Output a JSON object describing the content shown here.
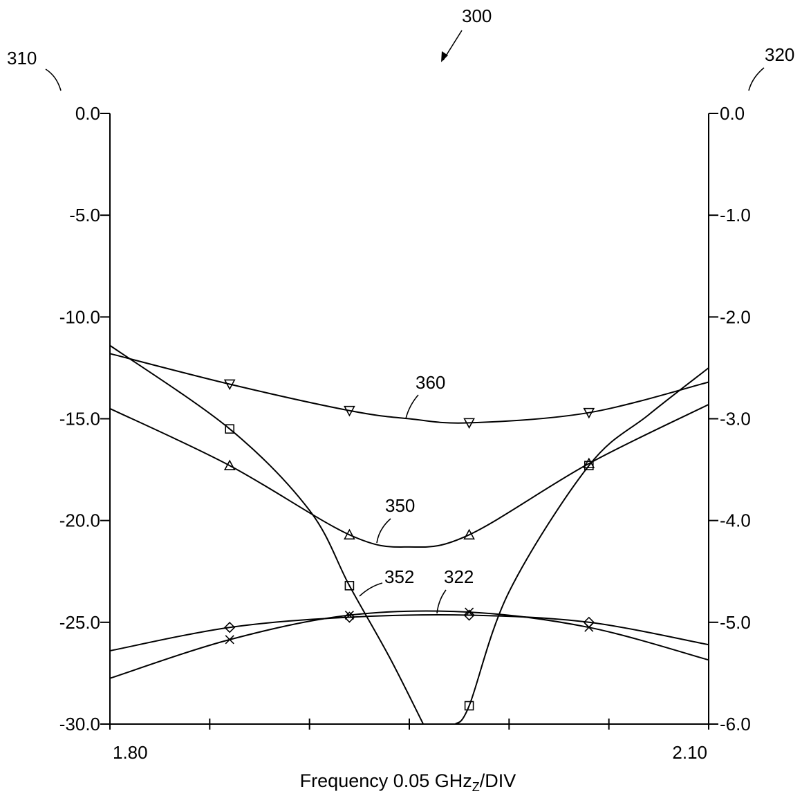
{
  "figure": {
    "ref_main": "300",
    "ref_left_axis": "310",
    "ref_right_axis": "320"
  },
  "chart_data": {
    "type": "line",
    "title": "",
    "xlabel": "Frequency 0.05 GHz",
    "xlabel_subscript": "Z",
    "xlabel_suffix": "/DIV",
    "xlim": [
      1.8,
      2.1
    ],
    "x_tick_labels": [
      {
        "value": 1.8,
        "label": "1.80"
      },
      {
        "value": 2.1,
        "label": "2.10"
      }
    ],
    "x_ticks": [
      1.8,
      1.85,
      1.9,
      1.95,
      2.0,
      2.05,
      2.1
    ],
    "ylim_left": [
      -30.0,
      0.0
    ],
    "y_ticks_left": [
      {
        "value": 0.0,
        "label": "0.0"
      },
      {
        "value": -5.0,
        "label": "-5.0"
      },
      {
        "value": -10.0,
        "label": "-10.0"
      },
      {
        "value": -15.0,
        "label": "-15.0"
      },
      {
        "value": -20.0,
        "label": "-20.0"
      },
      {
        "value": -25.0,
        "label": "-25.0"
      },
      {
        "value": -30.0,
        "label": "-30.0"
      }
    ],
    "ylim_right": [
      -6.0,
      0.0
    ],
    "y_ticks_right": [
      {
        "value": 0.0,
        "label": "0.0"
      },
      {
        "value": -1.0,
        "label": "-1.0"
      },
      {
        "value": -2.0,
        "label": "-2.0"
      },
      {
        "value": -3.0,
        "label": "-3.0"
      },
      {
        "value": -4.0,
        "label": "-4.0"
      },
      {
        "value": -5.0,
        "label": "-5.0"
      },
      {
        "value": -6.0,
        "label": "-6.0"
      }
    ],
    "grid": false,
    "series": [
      {
        "name": "360",
        "axis": "left",
        "marker": "triangle-down",
        "x": [
          1.8,
          1.86,
          1.92,
          1.95,
          1.98,
          2.04,
          2.1
        ],
        "y": [
          -11.8,
          -13.3,
          -14.6,
          -15.0,
          -15.2,
          -14.7,
          -13.2
        ],
        "marker_x": [
          1.86,
          1.92,
          1.98,
          2.04
        ],
        "marker_y": [
          -13.3,
          -14.6,
          -15.2,
          -14.7
        ]
      },
      {
        "name": "350",
        "axis": "left",
        "marker": "triangle-up",
        "x": [
          1.8,
          1.86,
          1.92,
          1.95,
          1.98,
          2.04,
          2.1
        ],
        "y": [
          -14.5,
          -17.3,
          -20.7,
          -21.3,
          -20.7,
          -17.2,
          -14.3
        ],
        "marker_x": [
          1.86,
          1.92,
          1.98,
          2.04
        ],
        "marker_y": [
          -17.3,
          -20.7,
          -20.7,
          -17.2
        ]
      },
      {
        "name": "352",
        "axis": "left",
        "marker": "square",
        "x": [
          1.8,
          1.86,
          1.9,
          1.92,
          1.94,
          1.957
        ],
        "y": [
          -11.4,
          -15.5,
          -19.5,
          -23.2,
          -26.7,
          -30.0
        ],
        "marker_x": [
          1.86,
          1.92
        ],
        "marker_y": [
          -15.5,
          -23.2
        ]
      },
      {
        "name": "352",
        "axis": "left",
        "marker": "square",
        "x": [
          1.973,
          1.98,
          2.0,
          2.04,
          2.07,
          2.1
        ],
        "y": [
          -30.0,
          -29.1,
          -23.5,
          -17.3,
          -14.8,
          -12.5
        ],
        "marker_x": [
          1.98,
          2.04
        ],
        "marker_y": [
          -29.1,
          -17.3
        ]
      },
      {
        "name": "322",
        "axis": "right",
        "marker": "diamond",
        "x": [
          1.8,
          1.86,
          1.92,
          1.98,
          2.04,
          2.1
        ],
        "y": [
          -5.28,
          -5.05,
          -4.95,
          -4.93,
          -5.0,
          -5.22
        ],
        "marker_x": [
          1.86,
          1.92,
          1.98,
          2.04
        ],
        "marker_y": [
          -5.05,
          -4.95,
          -4.93,
          -5.0
        ]
      },
      {
        "name": "",
        "axis": "right",
        "marker": "x",
        "x": [
          1.8,
          1.86,
          1.92,
          1.98,
          2.04,
          2.1
        ],
        "y": [
          -5.55,
          -5.17,
          -4.93,
          -4.9,
          -5.05,
          -5.37
        ],
        "marker_x": [
          1.86,
          1.92,
          1.98,
          2.04
        ],
        "marker_y": [
          -5.17,
          -4.93,
          -4.9,
          -5.05
        ]
      }
    ]
  }
}
